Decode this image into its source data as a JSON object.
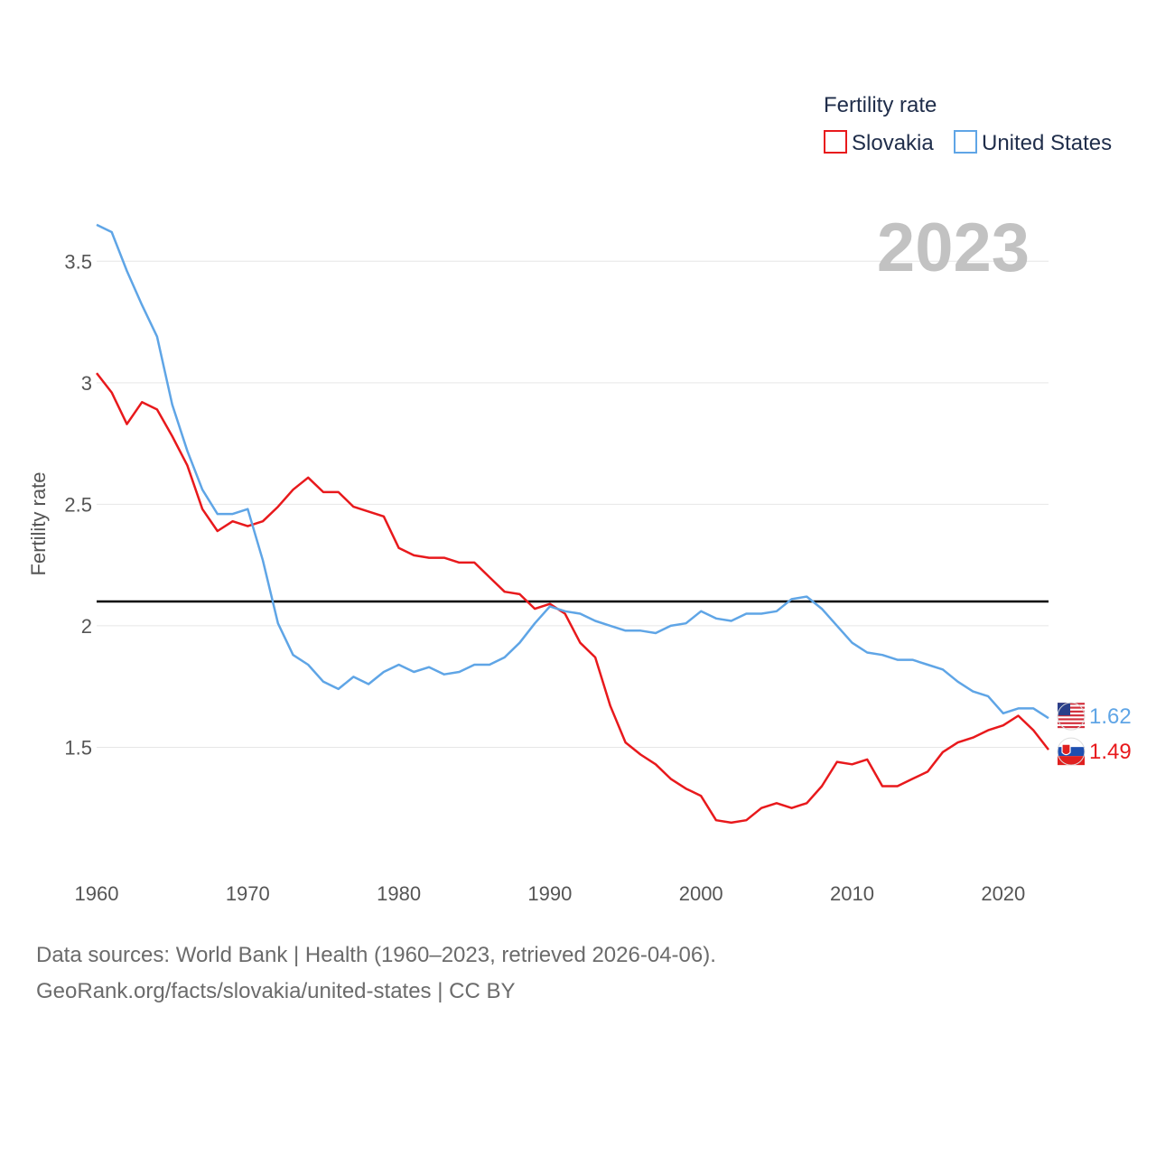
{
  "chart_data": {
    "type": "line",
    "legend_title": "Fertility rate",
    "ylabel": "Fertility rate",
    "year_label": "2023",
    "xlim": [
      1960,
      2023
    ],
    "ylim": [
      1.0,
      3.75
    ],
    "x_ticks": [
      1960,
      1970,
      1980,
      1990,
      2000,
      2010,
      2020
    ],
    "y_ticks": [
      1.5,
      2,
      2.5,
      3,
      3.5
    ],
    "y_tick_labels": [
      "1.5",
      "2",
      "2.5",
      "3",
      "3.5"
    ],
    "reference_line": 2.1,
    "x": [
      1960,
      1961,
      1962,
      1963,
      1964,
      1965,
      1966,
      1967,
      1968,
      1969,
      1970,
      1971,
      1972,
      1973,
      1974,
      1975,
      1976,
      1977,
      1978,
      1979,
      1980,
      1981,
      1982,
      1983,
      1984,
      1985,
      1986,
      1987,
      1988,
      1989,
      1990,
      1991,
      1992,
      1993,
      1994,
      1995,
      1996,
      1997,
      1998,
      1999,
      2000,
      2001,
      2002,
      2003,
      2004,
      2005,
      2006,
      2007,
      2008,
      2009,
      2010,
      2011,
      2012,
      2013,
      2014,
      2015,
      2016,
      2017,
      2018,
      2019,
      2020,
      2021,
      2022,
      2023
    ],
    "series": [
      {
        "name": "Slovakia",
        "color": "#e8191c",
        "end_label": "1.49",
        "values": [
          3.04,
          2.96,
          2.83,
          2.92,
          2.89,
          2.78,
          2.66,
          2.48,
          2.39,
          2.43,
          2.41,
          2.43,
          2.49,
          2.56,
          2.61,
          2.55,
          2.55,
          2.49,
          2.47,
          2.45,
          2.32,
          2.29,
          2.28,
          2.28,
          2.26,
          2.26,
          2.2,
          2.14,
          2.13,
          2.07,
          2.09,
          2.05,
          1.93,
          1.87,
          1.67,
          1.52,
          1.47,
          1.43,
          1.37,
          1.33,
          1.3,
          1.2,
          1.19,
          1.2,
          1.25,
          1.27,
          1.25,
          1.27,
          1.34,
          1.44,
          1.43,
          1.45,
          1.34,
          1.34,
          1.37,
          1.4,
          1.48,
          1.52,
          1.54,
          1.57,
          1.59,
          1.63,
          1.57,
          1.49
        ]
      },
      {
        "name": "United States",
        "color": "#5fa5e6",
        "end_label": "1.62",
        "values": [
          3.65,
          3.62,
          3.46,
          3.32,
          3.19,
          2.91,
          2.72,
          2.56,
          2.46,
          2.46,
          2.48,
          2.27,
          2.01,
          1.88,
          1.84,
          1.77,
          1.74,
          1.79,
          1.76,
          1.81,
          1.84,
          1.81,
          1.83,
          1.8,
          1.81,
          1.84,
          1.84,
          1.87,
          1.93,
          2.01,
          2.08,
          2.06,
          2.05,
          2.02,
          2.0,
          1.98,
          1.98,
          1.97,
          2.0,
          2.01,
          2.06,
          2.03,
          2.02,
          2.05,
          2.05,
          2.06,
          2.11,
          2.12,
          2.07,
          2.0,
          1.93,
          1.89,
          1.88,
          1.86,
          1.86,
          1.84,
          1.82,
          1.77,
          1.73,
          1.71,
          1.64,
          1.66,
          1.66,
          1.62
        ]
      }
    ]
  },
  "footer": {
    "line1": "Data sources: World Bank | Health (1960–2023, retrieved 2026-04-06).",
    "line2": "GeoRank.org/facts/slovakia/united-states | CC BY"
  }
}
